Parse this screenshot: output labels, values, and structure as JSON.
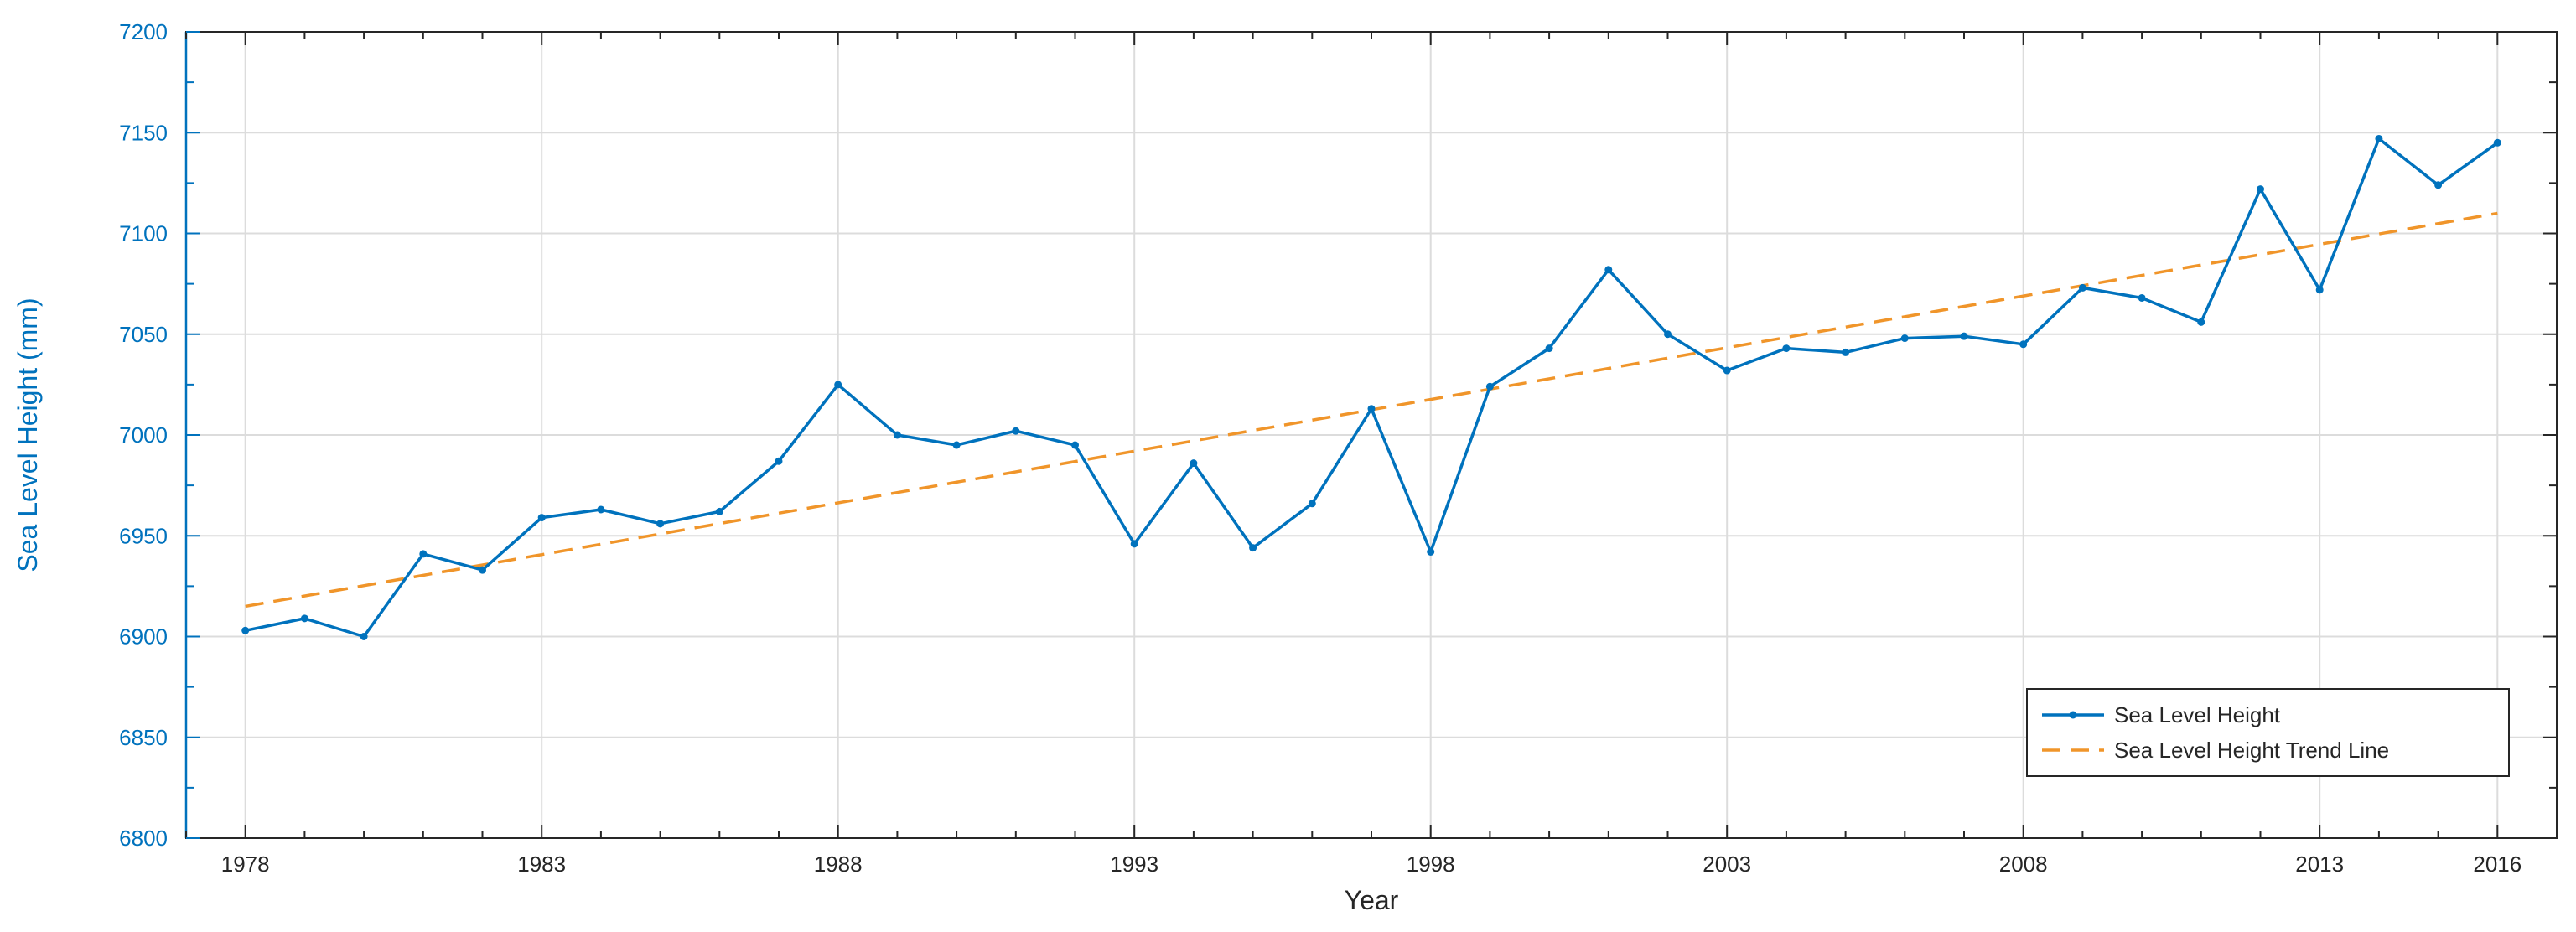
{
  "chart_data": {
    "type": "line",
    "title": "",
    "xlabel": "Year",
    "ylabel": "Sea Level Height (mm)",
    "xlim": [
      1977,
      2017
    ],
    "ylim": [
      6800,
      7200
    ],
    "xticks": [
      1978,
      1983,
      1988,
      1993,
      1998,
      2003,
      2008,
      2013,
      2016
    ],
    "xtick_labels": [
      "1978",
      "1983",
      "1988",
      "1993",
      "1998",
      "2003",
      "2008",
      "2013",
      "2016"
    ],
    "yticks": [
      6800,
      6850,
      6900,
      6950,
      7000,
      7050,
      7100,
      7150,
      7200
    ],
    "ytick_labels": [
      "6800",
      "6850",
      "6900",
      "6950",
      "7000",
      "7050",
      "7100",
      "7150",
      "7200"
    ],
    "grid": true,
    "legend_position": "bottom-right",
    "x": [
      1978,
      1979,
      1980,
      1981,
      1982,
      1983,
      1984,
      1985,
      1986,
      1987,
      1988,
      1989,
      1990,
      1991,
      1992,
      1993,
      1994,
      1995,
      1996,
      1997,
      1998,
      1999,
      2000,
      2001,
      2002,
      2003,
      2004,
      2005,
      2006,
      2007,
      2008,
      2009,
      2010,
      2011,
      2012,
      2013,
      2014,
      2015,
      2016
    ],
    "series": [
      {
        "name": "Sea Level Height",
        "style": "solid-with-markers",
        "color": "#0072BD",
        "values": [
          6903,
          6909,
          6900,
          6941,
          6933,
          6959,
          6963,
          6956,
          6962,
          6987,
          7025,
          7000,
          6995,
          7002,
          6995,
          6946,
          6986,
          6944,
          6966,
          7013,
          6942,
          7024,
          7043,
          7082,
          7050,
          7032,
          7043,
          7041,
          7048,
          7049,
          7045,
          7073,
          7068,
          7056,
          7122,
          7072,
          7147,
          7124,
          7145
        ]
      },
      {
        "name": "Sea Level Height Trend Line",
        "style": "dashed",
        "color": "#F0952A",
        "values": [
          6915,
          7110
        ],
        "x": [
          1978,
          2016
        ]
      }
    ]
  }
}
